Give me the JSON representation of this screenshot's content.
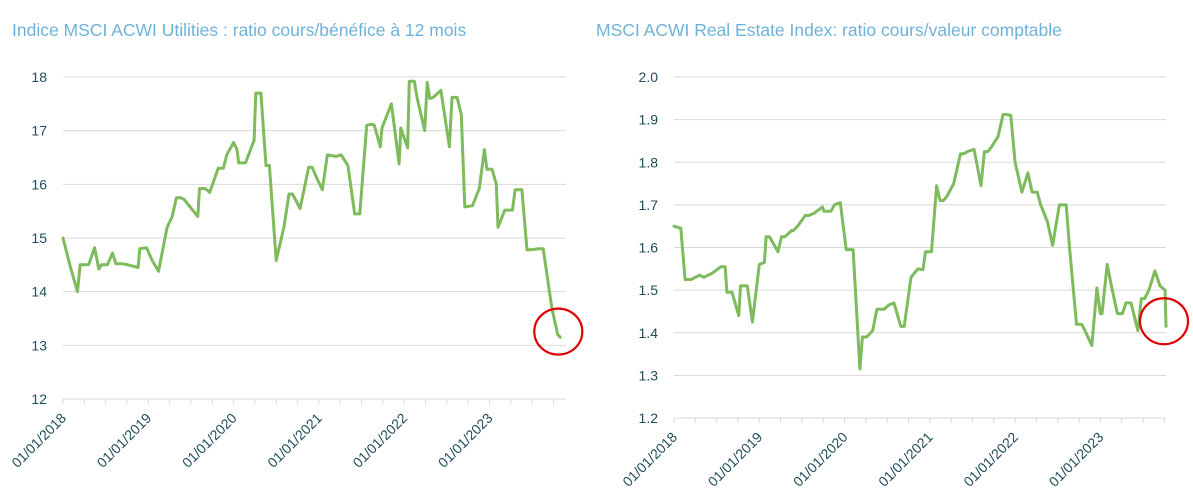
{
  "chart_data": [
    {
      "type": "line",
      "title": "Indice MSCI ACWI Utilities : ratio cours/bénéfice  à 12  mois",
      "xlabel": "",
      "ylabel": "",
      "x_tick_labels": [
        "01/01/2018",
        "01/01/2019",
        "01/01/2020",
        "01/01/2021",
        "01/01/2022",
        "01/01/2023"
      ],
      "y_tick_labels": [
        "12",
        "13",
        "14",
        "15",
        "16",
        "17",
        "18"
      ],
      "xlim": [
        2018.0,
        2023.85
      ],
      "ylim": [
        12,
        18
      ],
      "grid": true,
      "line_color": "#7dbb5c",
      "highlight": {
        "x": 2023.83,
        "y": 13.2,
        "color": "#e00000"
      },
      "x": [
        2018.0,
        2018.08,
        2018.17,
        2018.2,
        2018.3,
        2018.37,
        2018.42,
        2018.45,
        2018.52,
        2018.58,
        2018.62,
        2018.7,
        2018.76,
        2018.88,
        2018.9,
        2018.98,
        2019.04,
        2019.12,
        2019.22,
        2019.28,
        2019.33,
        2019.38,
        2019.42,
        2019.58,
        2019.6,
        2019.67,
        2019.72,
        2019.82,
        2019.88,
        2019.92,
        2020.0,
        2020.04,
        2020.06,
        2020.12,
        2020.14,
        2020.24,
        2020.26,
        2020.32,
        2020.38,
        2020.42,
        2020.5,
        2020.59,
        2020.65,
        2020.69,
        2020.78,
        2020.88,
        2020.92,
        2020.98,
        2021.04,
        2021.1,
        2021.2,
        2021.26,
        2021.34,
        2021.42,
        2021.48,
        2021.56,
        2021.62,
        2021.65,
        2021.72,
        2021.74,
        2021.85,
        2021.94,
        2021.96,
        2022.04,
        2022.06,
        2022.12,
        2022.15,
        2022.24,
        2022.27,
        2022.3,
        2022.34,
        2022.43,
        2022.53,
        2022.56,
        2022.62,
        2022.67,
        2022.71,
        2022.8,
        2022.88,
        2022.94,
        2022.97,
        2023.03,
        2023.08,
        2023.1,
        2023.18,
        2023.27,
        2023.3,
        2023.35,
        2023.38,
        2023.44,
        2023.48,
        2023.58,
        2023.63,
        2023.73,
        2023.8,
        2023.83
      ],
      "values": [
        15.0,
        14.5,
        14.0,
        14.5,
        14.5,
        14.82,
        14.42,
        14.5,
        14.5,
        14.72,
        14.52,
        14.52,
        14.5,
        14.45,
        14.8,
        14.82,
        14.6,
        14.38,
        15.2,
        15.4,
        15.75,
        15.75,
        15.72,
        15.4,
        15.92,
        15.92,
        15.85,
        16.3,
        16.3,
        16.55,
        16.78,
        16.65,
        16.4,
        16.4,
        16.4,
        16.82,
        17.7,
        17.7,
        16.35,
        16.35,
        14.58,
        15.2,
        15.82,
        15.82,
        15.55,
        16.32,
        16.32,
        16.1,
        15.9,
        16.55,
        16.52,
        16.55,
        16.35,
        15.45,
        15.45,
        17.1,
        17.12,
        17.1,
        16.7,
        17.05,
        17.5,
        16.38,
        17.05,
        16.68,
        17.92,
        17.92,
        17.62,
        17.0,
        17.9,
        17.6,
        17.62,
        17.75,
        16.7,
        17.62,
        17.62,
        17.3,
        15.58,
        15.6,
        15.92,
        16.65,
        16.28,
        16.28,
        16.0,
        15.2,
        15.52,
        15.52,
        15.9,
        15.9,
        15.9,
        14.78,
        14.78,
        14.8,
        14.8,
        13.7,
        13.2,
        13.15
      ]
    },
    {
      "type": "line",
      "title": "MSCI ACWI Real Estate Index: ratio cours/valeur  comptable",
      "xlabel": "",
      "ylabel": "",
      "x_tick_labels": [
        "01/01/2018",
        "01/01/2019",
        "01/01/2020",
        "01/01/2021",
        "01/01/2022",
        "01/01/2023"
      ],
      "y_tick_labels": [
        "1.2",
        "1.3",
        "1.4",
        "1.5",
        "1.6",
        "1.7",
        "1.8",
        "1.9",
        "2.0"
      ],
      "xlim": [
        2018.0,
        2023.77
      ],
      "ylim": [
        1.2,
        2.0
      ],
      "grid": true,
      "line_color": "#7dbb5c",
      "highlight": {
        "x": 2023.77,
        "y": 1.42,
        "color": "#e00000"
      },
      "x": [
        2018.0,
        2018.08,
        2018.13,
        2018.2,
        2018.3,
        2018.35,
        2018.45,
        2018.55,
        2018.6,
        2018.62,
        2018.68,
        2018.76,
        2018.78,
        2018.86,
        2018.92,
        2019.0,
        2019.06,
        2019.08,
        2019.12,
        2019.22,
        2019.26,
        2019.3,
        2019.38,
        2019.4,
        2019.45,
        2019.54,
        2019.58,
        2019.64,
        2019.74,
        2019.76,
        2019.84,
        2019.88,
        2019.95,
        2020.02,
        2020.06,
        2020.1,
        2020.18,
        2020.21,
        2020.26,
        2020.33,
        2020.38,
        2020.46,
        2020.52,
        2020.58,
        2020.66,
        2020.7,
        2020.78,
        2020.86,
        2020.92,
        2020.95,
        2021.02,
        2021.08,
        2021.12,
        2021.16,
        2021.2,
        2021.28,
        2021.36,
        2021.4,
        2021.44,
        2021.52,
        2021.6,
        2021.64,
        2021.68,
        2021.72,
        2021.8,
        2021.86,
        2021.9,
        2021.95,
        2022.0,
        2022.08,
        2022.15,
        2022.2,
        2022.26,
        2022.3,
        2022.38,
        2022.44,
        2022.52,
        2022.6,
        2022.64,
        2022.72,
        2022.78,
        2022.82,
        2022.9,
        2022.96,
        2023.0,
        2023.02,
        2023.08,
        2023.14,
        2023.2,
        2023.26,
        2023.3,
        2023.36,
        2023.44,
        2023.48,
        2023.52,
        2023.57,
        2023.64,
        2023.7,
        2023.76,
        2023.77
      ],
      "values": [
        1.65,
        1.645,
        1.525,
        1.525,
        1.535,
        1.53,
        1.54,
        1.555,
        1.555,
        1.495,
        1.495,
        1.44,
        1.51,
        1.51,
        1.425,
        1.56,
        1.565,
        1.625,
        1.625,
        1.59,
        1.625,
        1.625,
        1.64,
        1.64,
        1.65,
        1.675,
        1.675,
        1.68,
        1.695,
        1.685,
        1.685,
        1.7,
        1.705,
        1.595,
        1.595,
        1.595,
        1.315,
        1.39,
        1.39,
        1.405,
        1.455,
        1.455,
        1.465,
        1.47,
        1.415,
        1.415,
        1.53,
        1.55,
        1.548,
        1.59,
        1.59,
        1.745,
        1.71,
        1.71,
        1.72,
        1.75,
        1.82,
        1.82,
        1.825,
        1.83,
        1.745,
        1.825,
        1.825,
        1.835,
        1.86,
        1.912,
        1.912,
        1.91,
        1.8,
        1.73,
        1.775,
        1.73,
        1.73,
        1.7,
        1.66,
        1.605,
        1.7,
        1.7,
        1.598,
        1.42,
        1.42,
        1.405,
        1.37,
        1.505,
        1.445,
        1.445,
        1.56,
        1.5,
        1.445,
        1.445,
        1.47,
        1.47,
        1.405,
        1.48,
        1.48,
        1.5,
        1.545,
        1.51,
        1.5,
        1.415
      ]
    }
  ]
}
